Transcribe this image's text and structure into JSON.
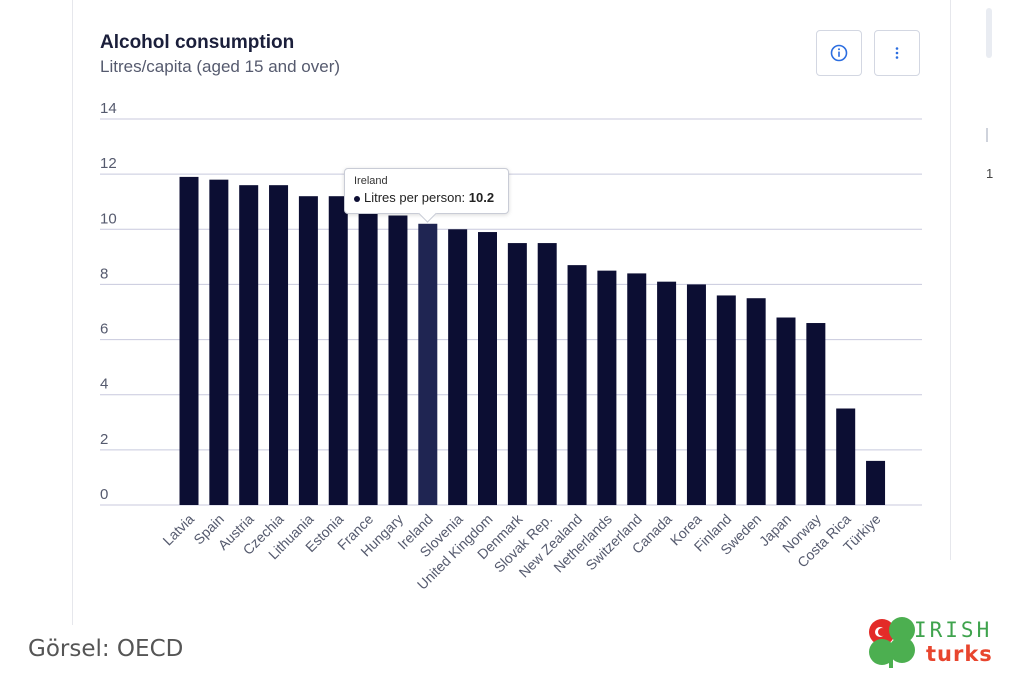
{
  "header": {
    "title": "Alcohol consumption",
    "subtitle": "Litres/capita (aged 15 and over)"
  },
  "toolbar": {
    "info_icon": "info-icon",
    "more_icon": "more-vertical-icon"
  },
  "tooltip": {
    "title": "Ireland",
    "label": "Litres per person: ",
    "value": "10.2"
  },
  "side_panel": {
    "number": "1"
  },
  "caption": "Görsel: OECD",
  "logo": {
    "line1": "IRISH",
    "line2": "turks"
  },
  "colors": {
    "bar": "#0c0e33",
    "bar_highlight": "#1f2552",
    "grid": "#c8c9dd",
    "logo_green": "#3fa34d",
    "logo_red": "#e8452e"
  },
  "chart_data": {
    "type": "bar",
    "title": "Alcohol consumption",
    "subtitle": "Litres/capita (aged 15 and over)",
    "categories": [
      "Latvia",
      "Spain",
      "Austria",
      "Czechia",
      "Lithuania",
      "Estonia",
      "France",
      "Hungary",
      "Ireland",
      "Slovenia",
      "United Kingdom",
      "Denmark",
      "Slovak Rep.",
      "New Zealand",
      "Netherlands",
      "Switzerland",
      "Canada",
      "Korea",
      "Finland",
      "Sweden",
      "Japan",
      "Norway",
      "Costa Rica",
      "Türkiye"
    ],
    "values": [
      11.9,
      11.8,
      11.6,
      11.6,
      11.2,
      11.2,
      10.6,
      10.5,
      10.2,
      10.0,
      9.9,
      9.5,
      9.5,
      8.7,
      8.5,
      8.4,
      8.1,
      8.0,
      7.6,
      7.5,
      6.8,
      6.6,
      3.5,
      1.6
    ],
    "yticks": [
      0,
      2,
      4,
      6,
      8,
      10,
      12,
      14
    ],
    "ylim": [
      0,
      14
    ],
    "grid": true,
    "highlighted": "Ireland"
  }
}
